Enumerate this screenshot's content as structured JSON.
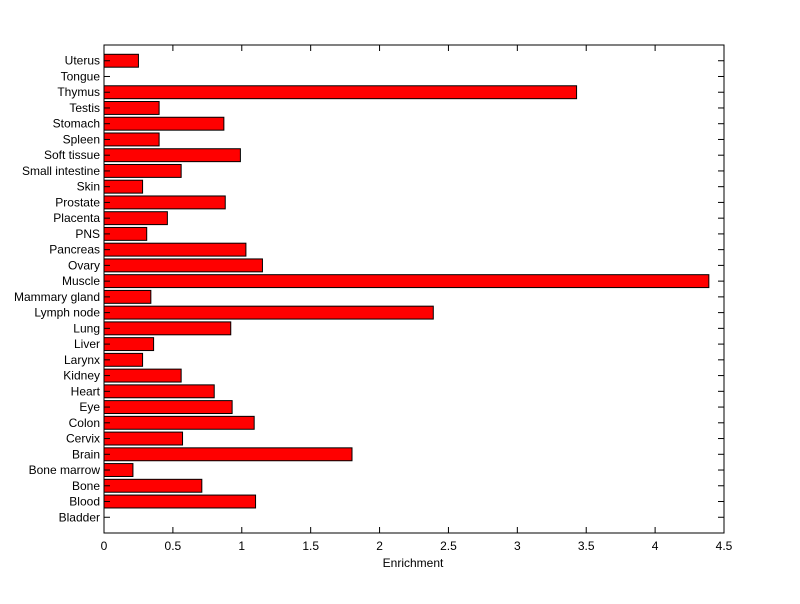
{
  "chart_data": {
    "type": "bar",
    "orientation": "horizontal",
    "categories": [
      "Bladder",
      "Blood",
      "Bone",
      "Bone marrow",
      "Brain",
      "Cervix",
      "Colon",
      "Eye",
      "Heart",
      "Kidney",
      "Larynx",
      "Liver",
      "Lung",
      "Lymph node",
      "Mammary gland",
      "Muscle",
      "Ovary",
      "Pancreas",
      "PNS",
      "Placenta",
      "Prostate",
      "Skin",
      "Small intestine",
      "Soft tissue",
      "Spleen",
      "Stomach",
      "Testis",
      "Thymus",
      "Tongue",
      "Uterus"
    ],
    "values": [
      0,
      1.1,
      0.71,
      0.21,
      1.8,
      0.57,
      1.09,
      0.93,
      0.8,
      0.56,
      0.28,
      0.36,
      0.92,
      2.39,
      0.34,
      4.39,
      1.15,
      1.03,
      0.31,
      0.46,
      0.88,
      0.28,
      0.56,
      0.99,
      0.4,
      0.87,
      0.4,
      3.43,
      0,
      0.25
    ],
    "xlabel": "Enrichment",
    "ylabel": "",
    "title": "",
    "xlim": [
      0,
      4.5
    ],
    "xticks": [
      0,
      0.5,
      1,
      1.5,
      2,
      2.5,
      3,
      3.5,
      4,
      4.5
    ],
    "xtick_labels": [
      "0",
      "0.5",
      "1",
      "1.5",
      "2",
      "2.5",
      "3",
      "3.5",
      "4",
      "4.5"
    ],
    "grid": false,
    "bar_color": "#ff0000",
    "bar_edge_color": "#000000"
  }
}
